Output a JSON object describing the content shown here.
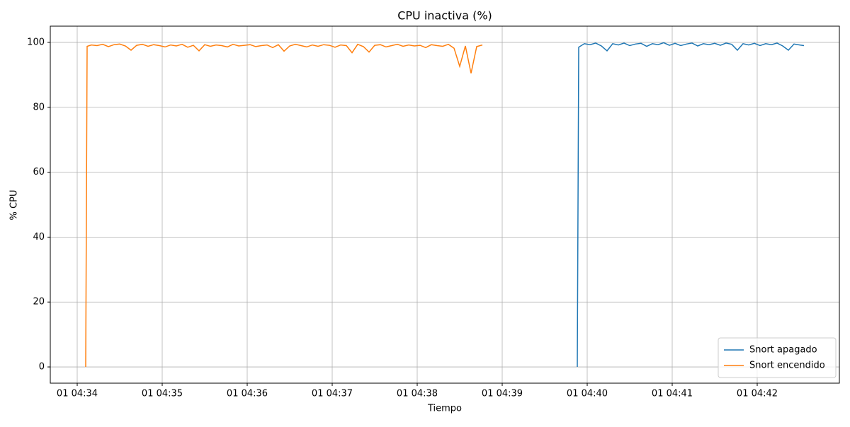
{
  "chart_data": {
    "type": "line",
    "title": "CPU inactiva (%)",
    "xlabel": "Tiempo",
    "ylabel": "% CPU",
    "xlim": [
      "01 04:33:41",
      "01 04:42:58"
    ],
    "xticks": [
      "01 04:34",
      "01 04:35",
      "01 04:36",
      "01 04:37",
      "01 04:38",
      "01 04:39",
      "01 04:40",
      "01 04:41",
      "01 04:42"
    ],
    "ylim": [
      -5,
      105
    ],
    "yticks": [
      0,
      20,
      40,
      60,
      80,
      100
    ],
    "grid": true,
    "legend": "lower right",
    "series": [
      {
        "name": "Snort apagado",
        "color": "#1f77b4",
        "x": [
          "01 04:39:53",
          "01 04:39:54",
          "01 04:39:58",
          "01 04:40:02",
          "01 04:40:06",
          "01 04:40:10",
          "01 04:40:14",
          "01 04:40:18",
          "01 04:40:22",
          "01 04:40:26",
          "01 04:40:30",
          "01 04:40:34",
          "01 04:40:38",
          "01 04:40:42",
          "01 04:40:46",
          "01 04:40:50",
          "01 04:40:54",
          "01 04:40:58",
          "01 04:41:02",
          "01 04:41:06",
          "01 04:41:10",
          "01 04:41:14",
          "01 04:41:18",
          "01 04:41:22",
          "01 04:41:26",
          "01 04:41:30",
          "01 04:41:34",
          "01 04:41:38",
          "01 04:41:42",
          "01 04:41:46",
          "01 04:41:50",
          "01 04:41:54",
          "01 04:41:58",
          "01 04:42:02",
          "01 04:42:06",
          "01 04:42:10",
          "01 04:42:14",
          "01 04:42:18",
          "01 04:42:22",
          "01 04:42:26",
          "01 04:42:30",
          "01 04:42:33"
        ],
        "values": [
          0,
          98.5,
          99.6,
          99.3,
          99.8,
          98.9,
          97.4,
          99.6,
          99.2,
          99.8,
          99.0,
          99.5,
          99.7,
          98.8,
          99.6,
          99.3,
          99.9,
          99.1,
          99.7,
          99.0,
          99.5,
          99.8,
          98.9,
          99.6,
          99.3,
          99.7,
          99.1,
          99.8,
          99.4,
          97.6,
          99.6,
          99.2,
          99.7,
          99.0,
          99.6,
          99.3,
          99.8,
          98.9,
          97.6,
          99.5,
          99.2,
          99.0
        ]
      },
      {
        "name": "Snort encendido",
        "color": "#ff7f0e",
        "x": [
          "01 04:34:06",
          "01 04:34:07",
          "01 04:34:10",
          "01 04:34:14",
          "01 04:34:18",
          "01 04:34:22",
          "01 04:34:26",
          "01 04:34:30",
          "01 04:34:34",
          "01 04:34:38",
          "01 04:34:42",
          "01 04:34:46",
          "01 04:34:50",
          "01 04:34:54",
          "01 04:34:58",
          "01 04:35:02",
          "01 04:35:06",
          "01 04:35:10",
          "01 04:35:14",
          "01 04:35:18",
          "01 04:35:22",
          "01 04:35:26",
          "01 04:35:30",
          "01 04:35:34",
          "01 04:35:38",
          "01 04:35:42",
          "01 04:35:46",
          "01 04:35:50",
          "01 04:35:54",
          "01 04:35:58",
          "01 04:36:02",
          "01 04:36:06",
          "01 04:36:10",
          "01 04:36:14",
          "01 04:36:18",
          "01 04:36:22",
          "01 04:36:26",
          "01 04:36:30",
          "01 04:36:34",
          "01 04:36:38",
          "01 04:36:42",
          "01 04:36:46",
          "01 04:36:50",
          "01 04:36:54",
          "01 04:36:58",
          "01 04:37:02",
          "01 04:37:06",
          "01 04:37:10",
          "01 04:37:14",
          "01 04:37:18",
          "01 04:37:22",
          "01 04:37:26",
          "01 04:37:30",
          "01 04:37:34",
          "01 04:37:38",
          "01 04:37:42",
          "01 04:37:46",
          "01 04:37:50",
          "01 04:37:54",
          "01 04:37:58",
          "01 04:38:02",
          "01 04:38:06",
          "01 04:38:10",
          "01 04:38:14",
          "01 04:38:18",
          "01 04:38:22",
          "01 04:38:26",
          "01 04:38:30",
          "01 04:38:34",
          "01 04:38:38",
          "01 04:38:42",
          "01 04:38:46"
        ],
        "values": [
          0,
          98.8,
          99.2,
          99.0,
          99.4,
          98.7,
          99.3,
          99.5,
          98.9,
          97.6,
          99.1,
          99.4,
          98.8,
          99.3,
          99.0,
          98.6,
          99.2,
          98.9,
          99.4,
          98.5,
          99.1,
          97.4,
          99.3,
          98.8,
          99.2,
          99.0,
          98.6,
          99.4,
          98.9,
          99.1,
          99.3,
          98.7,
          99.0,
          99.2,
          98.4,
          99.3,
          97.3,
          98.9,
          99.4,
          99.0,
          98.6,
          99.2,
          98.8,
          99.3,
          99.1,
          98.5,
          99.2,
          99.0,
          96.8,
          99.4,
          98.7,
          97.0,
          99.1,
          99.3,
          98.6,
          99.0,
          99.4,
          98.8,
          99.2,
          98.9,
          99.1,
          98.4,
          99.3,
          99.0,
          98.8,
          99.4,
          98.2,
          92.6,
          98.9,
          90.5,
          98.7,
          99.2
        ]
      }
    ]
  }
}
